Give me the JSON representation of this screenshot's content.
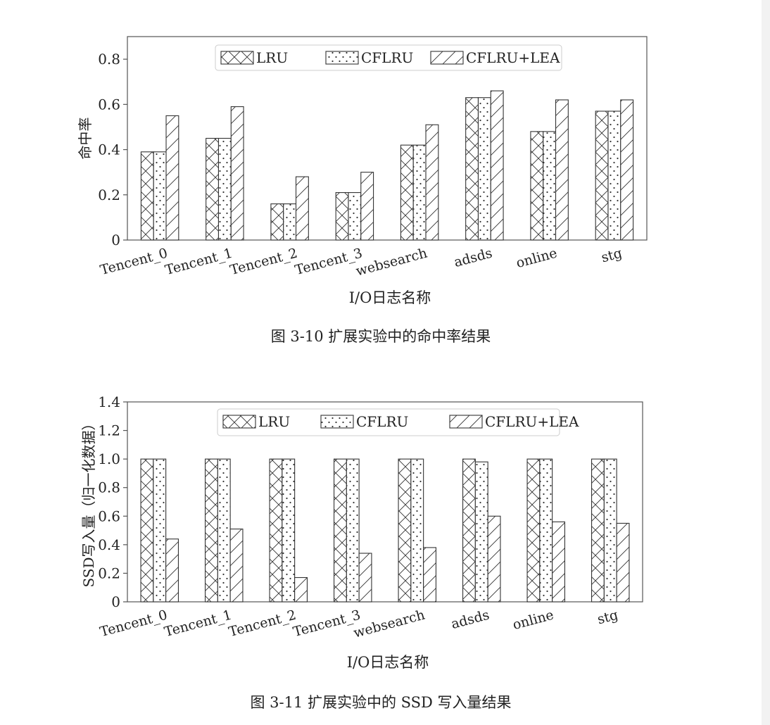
{
  "figures": [
    {
      "caption": "图 3-10  扩展实验中的命中率结果",
      "chart_data": {
        "type": "bar",
        "title": "",
        "xlabel": "I/O日志名称",
        "ylabel": "命中率",
        "ylim": [
          0,
          0.9
        ],
        "yticks": [
          0,
          0.2,
          0.4,
          0.6,
          0.8
        ],
        "ytick_labels": [
          "0",
          "0.2",
          "0.4",
          "0.6",
          "0.8"
        ],
        "categories": [
          "Tencent_0",
          "Tencent_1",
          "Tencent_2",
          "Tencent_3",
          "websearch",
          "adsds",
          "online",
          "stg"
        ],
        "legend_position": "top-center",
        "grid": false,
        "series": [
          {
            "name": "LRU",
            "pattern": "cross-hatch",
            "values": [
              0.39,
              0.45,
              0.16,
              0.21,
              0.42,
              0.63,
              0.48,
              0.57
            ]
          },
          {
            "name": "CFLRU",
            "pattern": "dots",
            "values": [
              0.39,
              0.45,
              0.16,
              0.21,
              0.42,
              0.63,
              0.48,
              0.57
            ]
          },
          {
            "name": "CFLRU+LEA",
            "pattern": "diagonal-hatch",
            "values": [
              0.55,
              0.59,
              0.28,
              0.3,
              0.51,
              0.66,
              0.62,
              0.62
            ]
          }
        ]
      }
    },
    {
      "caption": "图 3-11  扩展实验中的 SSD 写入量结果",
      "chart_data": {
        "type": "bar",
        "title": "",
        "xlabel": "I/O日志名称",
        "ylabel": "SSD写入量（归一化数据）",
        "ylim": [
          0,
          1.4
        ],
        "yticks": [
          0,
          0.2,
          0.4,
          0.6,
          0.8,
          1.0,
          1.2,
          1.4
        ],
        "ytick_labels": [
          "0",
          "0.2",
          "0.4",
          "0.6",
          "0.8",
          "1.0",
          "1.2",
          "1.4"
        ],
        "categories": [
          "Tencent_0",
          "Tencent_1",
          "Tencent_2",
          "Tencent_3",
          "websearch",
          "adsds",
          "online",
          "stg"
        ],
        "legend_position": "top-center",
        "grid": false,
        "series": [
          {
            "name": "LRU",
            "pattern": "cross-hatch",
            "values": [
              1.0,
              1.0,
              1.0,
              1.0,
              1.0,
              1.0,
              1.0,
              1.0
            ]
          },
          {
            "name": "CFLRU",
            "pattern": "dots",
            "values": [
              1.0,
              1.0,
              1.0,
              1.0,
              1.0,
              0.98,
              1.0,
              1.0
            ]
          },
          {
            "name": "CFLRU+LEA",
            "pattern": "diagonal-hatch",
            "values": [
              0.44,
              0.51,
              0.17,
              0.34,
              0.38,
              0.6,
              0.56,
              0.55
            ]
          }
        ]
      }
    }
  ]
}
